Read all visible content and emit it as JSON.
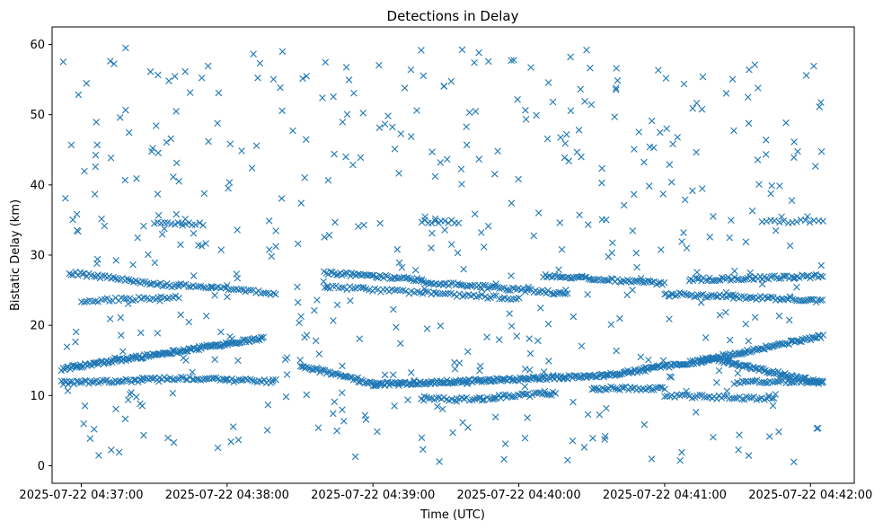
{
  "chart_data": {
    "type": "scatter",
    "title": "Detections in Delay",
    "xlabel": "Time (UTC)",
    "ylabel": "Bistatic Delay (km)",
    "marker": "x",
    "color": "#1f77b4",
    "xlim": [
      "2025-07-22 04:36:48",
      "2025-07-22 04:42:18"
    ],
    "ylim": [
      -2.5,
      62.5
    ],
    "x_ticks": [
      "2025-07-22 04:37:00",
      "2025-07-22 04:38:00",
      "2025-07-22 04:39:00",
      "2025-07-22 04:40:00",
      "2025-07-22 04:41:00",
      "2025-07-22 04:42:00"
    ],
    "y_ticks": [
      0,
      10,
      20,
      30,
      40,
      50,
      60
    ],
    "grid": false,
    "series": [
      {
        "tracks": [
          {
            "from": [
              "2025-07-22 04:36:52",
              13.8
            ],
            "to": [
              "2025-07-22 04:38:15",
              18.2
            ],
            "count": 150
          },
          {
            "from": [
              "2025-07-22 04:39:00",
              11.6
            ],
            "to": [
              "2025-07-22 04:39:50",
              12.2
            ],
            "count": 90
          },
          {
            "from": [
              "2025-07-22 04:38:30",
              14.3
            ],
            "to": [
              "2025-07-22 04:39:00",
              11.6
            ],
            "count": 45
          },
          {
            "from": [
              "2025-07-22 04:39:50",
              12.2
            ],
            "to": [
              "2025-07-22 04:40:35",
              12.8
            ],
            "count": 70
          },
          {
            "from": [
              "2025-07-22 04:40:35",
              12.8
            ],
            "to": [
              "2025-07-22 04:41:20",
              15.2
            ],
            "count": 80
          },
          {
            "from": [
              "2025-07-22 04:41:20",
              15.2
            ],
            "to": [
              "2025-07-22 04:42:05",
              11.8
            ],
            "count": 80
          },
          {
            "from": [
              "2025-07-22 04:41:15",
              15.0
            ],
            "to": [
              "2025-07-22 04:42:05",
              18.5
            ],
            "count": 80
          },
          {
            "from": [
              "2025-07-22 04:36:52",
              11.8
            ],
            "to": [
              "2025-07-22 04:37:25",
              12.2
            ],
            "count": 40
          },
          {
            "from": [
              "2025-07-22 04:37:25",
              12.4
            ],
            "to": [
              "2025-07-22 04:38:00",
              12.4
            ],
            "count": 40
          },
          {
            "from": [
              "2025-07-22 04:38:00",
              12.2
            ],
            "to": [
              "2025-07-22 04:38:20",
              12.0
            ],
            "count": 22
          },
          {
            "from": [
              "2025-07-22 04:39:20",
              9.5
            ],
            "to": [
              "2025-07-22 04:39:50",
              9.5
            ],
            "count": 30
          },
          {
            "from": [
              "2025-07-22 04:39:50",
              9.8
            ],
            "to": [
              "2025-07-22 04:40:15",
              10.3
            ],
            "count": 30
          },
          {
            "from": [
              "2025-07-22 04:40:30",
              11.0
            ],
            "to": [
              "2025-07-22 04:41:00",
              11.0
            ],
            "count": 35
          },
          {
            "from": [
              "2025-07-22 04:41:00",
              10.0
            ],
            "to": [
              "2025-07-22 04:41:45",
              9.5
            ],
            "count": 45
          },
          {
            "from": [
              "2025-07-22 04:41:30",
              12.0
            ],
            "to": [
              "2025-07-22 04:42:05",
              12.0
            ],
            "count": 40
          },
          {
            "from": [
              "2025-07-22 04:36:55",
              27.5
            ],
            "to": [
              "2025-07-22 04:37:40",
              25.5
            ],
            "count": 50
          },
          {
            "from": [
              "2025-07-22 04:37:40",
              25.8
            ],
            "to": [
              "2025-07-22 04:38:20",
              24.5
            ],
            "count": 40
          },
          {
            "from": [
              "2025-07-22 04:37:00",
              23.5
            ],
            "to": [
              "2025-07-22 04:37:40",
              24.0
            ],
            "count": 35
          },
          {
            "from": [
              "2025-07-22 04:38:40",
              27.5
            ],
            "to": [
              "2025-07-22 04:39:20",
              26.5
            ],
            "count": 50
          },
          {
            "from": [
              "2025-07-22 04:39:20",
              26.2
            ],
            "to": [
              "2025-07-22 04:40:20",
              24.5
            ],
            "count": 70
          },
          {
            "from": [
              "2025-07-22 04:38:40",
              25.5
            ],
            "to": [
              "2025-07-22 04:40:00",
              23.8
            ],
            "count": 70
          },
          {
            "from": [
              "2025-07-22 04:40:10",
              27.0
            ],
            "to": [
              "2025-07-22 04:41:00",
              26.0
            ],
            "count": 60
          },
          {
            "from": [
              "2025-07-22 04:41:00",
              24.5
            ],
            "to": [
              "2025-07-22 04:42:05",
              23.5
            ],
            "count": 75
          },
          {
            "from": [
              "2025-07-22 04:41:10",
              26.5
            ],
            "to": [
              "2025-07-22 04:42:05",
              27.0
            ],
            "count": 65
          },
          {
            "from": [
              "2025-07-22 04:37:30",
              34.5
            ],
            "to": [
              "2025-07-22 04:37:50",
              34.5
            ],
            "count": 15
          },
          {
            "from": [
              "2025-07-22 04:39:20",
              34.8
            ],
            "to": [
              "2025-07-22 04:39:35",
              34.8
            ],
            "count": 12
          },
          {
            "from": [
              "2025-07-22 04:41:40",
              34.8
            ],
            "to": [
              "2025-07-22 04:42:05",
              34.8
            ],
            "count": 15
          }
        ],
        "clutter_points": 520,
        "clutter_xrange": [
          "2025-07-22 04:36:52",
          "2025-07-22 04:42:05"
        ],
        "clutter_yrange": [
          0.5,
          60
        ]
      }
    ]
  }
}
